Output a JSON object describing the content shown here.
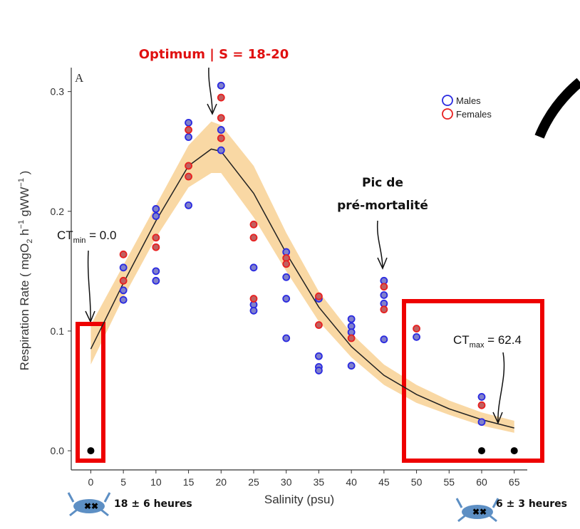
{
  "chart_data": {
    "type": "scatter",
    "title": "Optimum | S = 18-20",
    "panel_label": "A",
    "x_label": "Salinity (psu)",
    "y_label_parts": [
      "Respiration Rate ( mgO",
      "2",
      " h",
      "−1",
      " gWW",
      "−1",
      " )"
    ],
    "xlim": [
      -3,
      67
    ],
    "ylim": [
      -0.016,
      0.32
    ],
    "xticks": [
      0,
      5,
      10,
      15,
      20,
      25,
      30,
      35,
      40,
      45,
      50,
      55,
      60,
      65
    ],
    "yticks": [
      {
        "value": 0,
        "label": "0.0"
      },
      0.1,
      0.2,
      0.3
    ],
    "legend": "top-right",
    "series": [
      {
        "name": "Males",
        "color": "#2a2ae0",
        "fill": "#8080cc",
        "x": [
          5,
          5,
          5,
          10,
          10,
          10,
          10,
          15,
          15,
          15,
          20,
          20,
          20,
          25,
          25,
          25,
          30,
          30,
          30,
          30,
          35,
          35,
          35,
          35,
          40,
          40,
          40,
          40,
          45,
          45,
          45,
          45,
          50,
          60,
          60
        ],
        "values": [
          0.153,
          0.134,
          0.126,
          0.202,
          0.196,
          0.15,
          0.142,
          0.274,
          0.262,
          0.205,
          0.305,
          0.268,
          0.251,
          0.153,
          0.122,
          0.117,
          0.166,
          0.145,
          0.127,
          0.094,
          0.127,
          0.079,
          0.07,
          0.067,
          0.11,
          0.104,
          0.099,
          0.071,
          0.142,
          0.13,
          0.123,
          0.093,
          0.095,
          0.045,
          0.024
        ]
      },
      {
        "name": "Females",
        "color": "#e82020",
        "fill": "#c06060",
        "x": [
          5,
          5,
          10,
          10,
          15,
          15,
          15,
          20,
          20,
          20,
          25,
          25,
          25,
          30,
          30,
          35,
          35,
          40,
          45,
          45,
          50,
          60
        ],
        "values": [
          0.164,
          0.142,
          0.178,
          0.17,
          0.268,
          0.238,
          0.229,
          0.295,
          0.278,
          0.261,
          0.189,
          0.178,
          0.127,
          0.161,
          0.156,
          0.129,
          0.105,
          0.094,
          0.137,
          0.118,
          0.102,
          0.038
        ]
      },
      {
        "color": "#000000",
        "x": [
          0,
          60,
          65
        ],
        "values": [
          0,
          0,
          0
        ]
      }
    ],
    "fit": {
      "color": "#222222",
      "band_color": "#f9d8a4",
      "x": [
        0,
        5,
        10,
        15,
        18.5,
        20,
        25,
        30,
        35,
        40,
        45,
        50,
        55,
        60,
        65
      ],
      "values": [
        0.085,
        0.14,
        0.192,
        0.238,
        0.252,
        0.25,
        0.215,
        0.165,
        0.12,
        0.087,
        0.063,
        0.047,
        0.035,
        0.026,
        0.019
      ],
      "lower": [
        0.072,
        0.128,
        0.178,
        0.22,
        0.232,
        0.232,
        0.195,
        0.15,
        0.108,
        0.078,
        0.055,
        0.04,
        0.03,
        0.021,
        0.015
      ],
      "upper": [
        0.105,
        0.155,
        0.205,
        0.255,
        0.275,
        0.272,
        0.238,
        0.182,
        0.133,
        0.098,
        0.072,
        0.055,
        0.042,
        0.032,
        0.025
      ]
    },
    "annotations": {
      "peak_mortality": [
        "Pic de",
        "pré-mortalité"
      ],
      "ct_min": [
        "CT",
        "min",
        " = 0.0"
      ],
      "ct_max": [
        "CT",
        "max",
        " = 62.4"
      ],
      "survival_low": "18 ± 6 heures",
      "survival_high": "6 ± 3 heures"
    }
  }
}
